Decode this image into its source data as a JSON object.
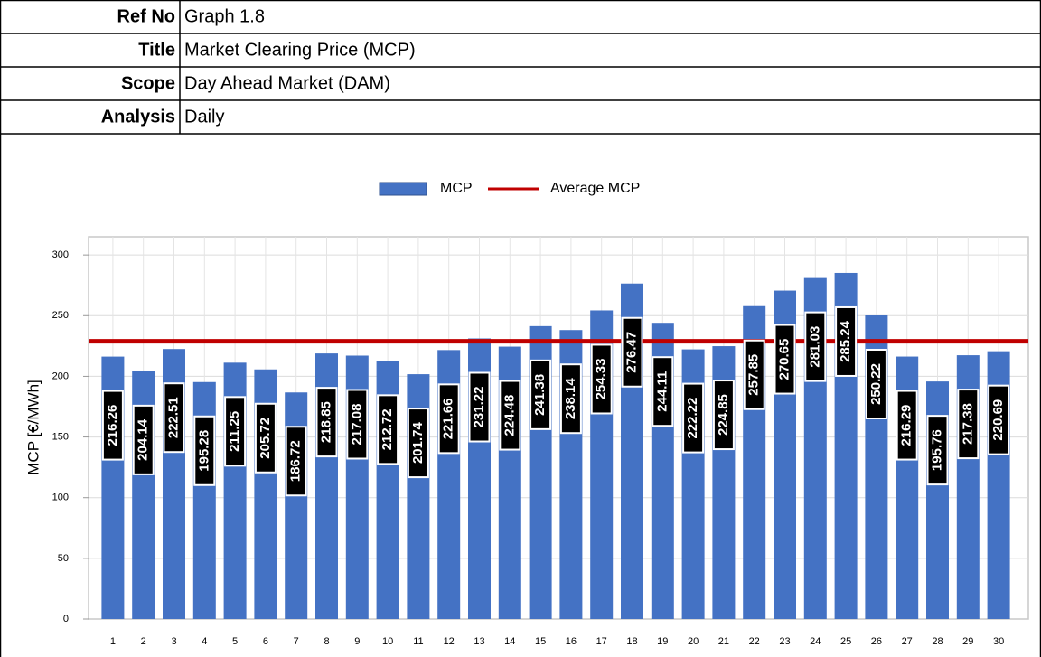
{
  "header": {
    "rows": [
      {
        "label": "Ref No",
        "value": "Graph 1.8"
      },
      {
        "label": "Title",
        "value": "Market Clearing Price (MCP)"
      },
      {
        "label": "Scope",
        "value": "Day Ahead Market (DAM)"
      },
      {
        "label": "Analysis",
        "value": "Daily"
      }
    ]
  },
  "chart_data": {
    "type": "bar",
    "y_label": "MCP [€/MWh]",
    "categories": [
      "1",
      "2",
      "3",
      "4",
      "5",
      "6",
      "7",
      "8",
      "9",
      "10",
      "11",
      "12",
      "13",
      "14",
      "15",
      "16",
      "17",
      "18",
      "19",
      "20",
      "21",
      "22",
      "23",
      "24",
      "25",
      "26",
      "27",
      "28",
      "29",
      "30"
    ],
    "series": [
      {
        "name": "MCP",
        "color": "#4472c4",
        "values": [
          216.26,
          204.14,
          222.51,
          195.28,
          211.25,
          205.72,
          186.72,
          218.85,
          217.08,
          212.72,
          201.74,
          221.66,
          231.22,
          224.48,
          241.38,
          238.14,
          254.33,
          276.47,
          244.11,
          222.22,
          224.85,
          257.85,
          270.65,
          281.03,
          285.24,
          250.22,
          216.29,
          195.76,
          217.38,
          220.69
        ]
      },
      {
        "name": "Average MCP",
        "color": "#c00000",
        "type": "line",
        "value": 228.87
      }
    ],
    "ylim": [
      0,
      315
    ],
    "yticks": [
      0,
      50,
      100,
      150,
      200,
      250,
      300
    ],
    "grid": true,
    "legend": "top"
  }
}
